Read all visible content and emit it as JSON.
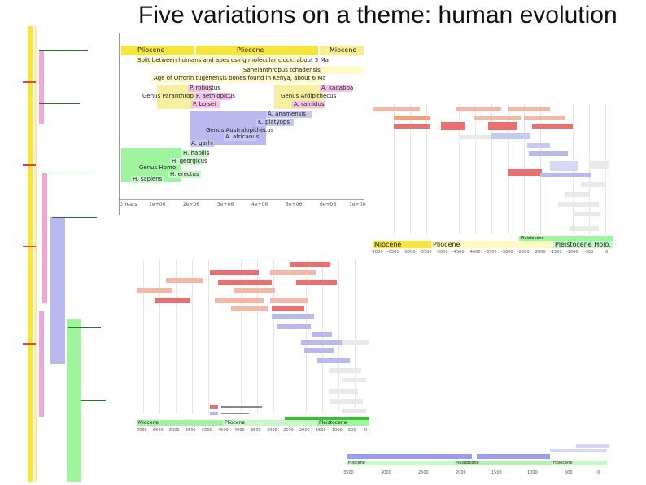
{
  "title": "Five variations on a theme: human evolution",
  "chart2": {
    "epochs": [
      "Pliocene",
      "Pliocene",
      "Miocene"
    ],
    "labels": [
      "Split between humans and apes using molecular clock: about 5 Ma",
      "Sahelanthropus tchadensis",
      "Age of Orrorin tugenensis bones found in Kenya, about 6 Ma",
      "P. robustus",
      "A. kadabba",
      "Genus Paranthropus",
      "P. aethiopicus",
      "Genus Ardipithecus",
      "P. boisei",
      "A. ramidus",
      "A. anamensis",
      "K. platyops",
      "Genus Australopithecus",
      "A. africanus",
      "A. garhi",
      "H. habilis",
      "H. georgicus",
      "Genus Homo",
      "H. erectus",
      "H. sapiens"
    ],
    "axis": [
      "0 Years",
      "1e+06",
      "2e+06",
      "3e+06",
      "4e+06",
      "5e+06",
      "6e+06",
      "7e+06"
    ]
  },
  "chart3": {
    "epochs": [
      "Miocene",
      "Pliocene",
      "Pleistocene Holo."
    ],
    "epoch_top": "Pleistocene",
    "axis": [
      "-7000",
      "-6500",
      "-6000",
      "-5500",
      "-5000",
      "-4500",
      "-4000",
      "-3500",
      "-3000",
      "-2500",
      "-2000",
      "-1500",
      "-1000",
      "-500",
      "0"
    ]
  },
  "chart4": {
    "epochs": [
      "Miocene",
      "Pliocene",
      "Pleistocene"
    ],
    "axis": [
      "7000",
      "6500",
      "6000",
      "5500",
      "5000",
      "4500",
      "4000",
      "3500",
      "3000",
      "2500",
      "2000",
      "1500",
      "1000",
      "500",
      "0"
    ]
  },
  "chart5": {
    "epochs": [
      "Pliocene",
      "Pleistocene",
      "Holocene"
    ],
    "axis": [
      "3500",
      "3000",
      "2500",
      "2000",
      "1500",
      "1000",
      "500",
      "0"
    ]
  }
}
